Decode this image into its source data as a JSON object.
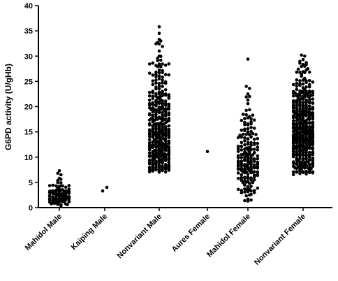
{
  "chart_data": {
    "type": "scatter",
    "title": "",
    "xlabel": "",
    "ylabel": "G6PD activity (U/gHb)",
    "ylim": [
      0,
      40
    ],
    "yticks": [
      "0",
      "5",
      "10",
      "15",
      "20",
      "25",
      "30",
      "35",
      "40"
    ],
    "grid": false,
    "legend": "none",
    "marker_color": "#000000",
    "categories": [
      "Mahidol Male",
      "Kaiping Male",
      "Nonvariant Male",
      "Aures Female",
      "Mahidol Female",
      "Nonvariant Female"
    ],
    "series": [
      {
        "category": "Mahidol Male",
        "n_points": 110,
        "range": [
          0.3,
          7.3
        ],
        "outliers": [
          7.3,
          6.8,
          6.5,
          5.8,
          5.6
        ],
        "values": []
      },
      {
        "category": "Kaiping Male",
        "n_points": 2,
        "values": [
          3.3,
          4.0
        ]
      },
      {
        "category": "Nonvariant Male",
        "n_points": 420,
        "range": [
          7.2,
          35.8
        ],
        "outliers": [
          35.8,
          34.5,
          33.3,
          33.0,
          32.4,
          31.9,
          31.0,
          30.0,
          29.2,
          28.6
        ],
        "values": []
      },
      {
        "category": "Aures Female",
        "n_points": 1,
        "values": [
          11.1
        ]
      },
      {
        "category": "Mahidol Female",
        "n_points": 200,
        "range": [
          1.3,
          29.4
        ],
        "outliers": [
          29.4,
          24.0,
          23.6,
          22.5,
          22.0,
          21.3,
          20.6,
          1.3,
          1.5
        ],
        "values": []
      },
      {
        "category": "Nonvariant Female",
        "n_points": 500,
        "range": [
          6.5,
          30.2
        ],
        "outliers": [
          30.2,
          30.0,
          29.3,
          28.7,
          28.0,
          27.5
        ],
        "values": []
      }
    ]
  }
}
